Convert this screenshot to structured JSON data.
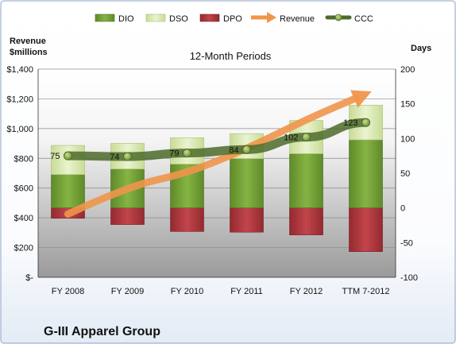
{
  "chart_data": {
    "type": "bar",
    "subtitle": "12-Month Periods",
    "company": "G-III Apparel Group",
    "left_axis_title_line1": "Revenue",
    "left_axis_title_line2": "$millions",
    "right_axis_title": "Days",
    "categories": [
      "FY 2008",
      "FY 2009",
      "FY 2010",
      "FY 2011",
      "FY 2012",
      "TTM 7-2012"
    ],
    "left_axis": {
      "min": 0,
      "max": 1400,
      "step": 200,
      "ticks": [
        "$-",
        "$200",
        "$400",
        "$600",
        "$800",
        "$1,000",
        "$1,200",
        "$1,400"
      ]
    },
    "right_axis": {
      "min": -100,
      "max": 200,
      "step": 50,
      "ticks": [
        "-100",
        "-50",
        "0",
        "50",
        "100",
        "150",
        "200"
      ]
    },
    "series": [
      {
        "name": "DIO",
        "kind": "stacked-bar",
        "axis": "days",
        "color": "#77A33A",
        "values": [
          48,
          56,
          63,
          71,
          78,
          98
        ]
      },
      {
        "name": "DSO",
        "kind": "stacked-bar",
        "axis": "days",
        "color": "#D7E8AE",
        "values": [
          42,
          37,
          38,
          36,
          48,
          50
        ]
      },
      {
        "name": "DPO",
        "kind": "stacked-bar-negative",
        "axis": "days",
        "color": "#B6373E",
        "values": [
          -15,
          -24,
          -34,
          -35,
          -39,
          -63
        ]
      },
      {
        "name": "Revenue",
        "kind": "arrow-line",
        "axis": "revenue",
        "color": "#F0954A",
        "values": [
          425,
          611,
          700,
          863,
          1062,
          1233
        ]
      },
      {
        "name": "CCC",
        "kind": "line-markers",
        "axis": "days",
        "color": "#4E6B2C",
        "values": [
          75,
          74,
          79,
          84,
          102,
          123
        ]
      }
    ],
    "data_labels": [
      "75",
      "74",
      "79",
      "84",
      "102",
      "123"
    ],
    "legend_position": "top",
    "grid": true,
    "colors": {
      "plot_bg_top": "#FFFFFF",
      "plot_bg_bottom": "#9C9C9C",
      "border": "#8CA0C4"
    }
  }
}
